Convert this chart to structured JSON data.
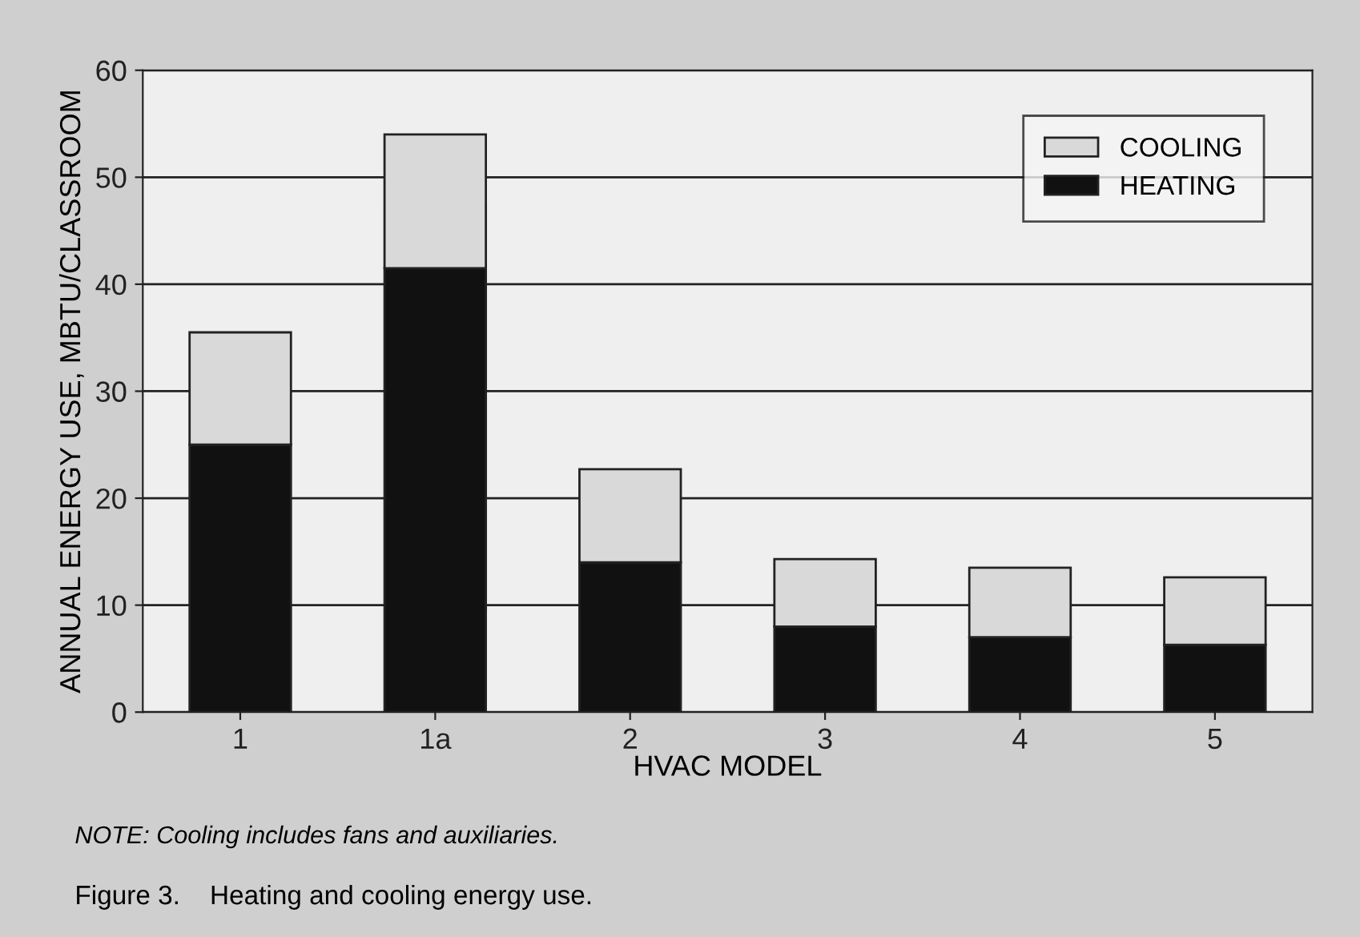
{
  "chart_data": {
    "type": "bar",
    "title": "Figure 3.    Heating and cooling energy use.",
    "xlabel": "HVAC MODEL",
    "ylabel": "ANNUAL ENERGY USE, MBTU/CLASSROOM",
    "categories": [
      "1",
      "1a",
      "2",
      "3",
      "4",
      "5"
    ],
    "series": [
      {
        "name": "HEATING",
        "color": "#111111",
        "values": [
          25,
          41.5,
          14,
          8,
          7,
          6.3
        ]
      },
      {
        "name": "COOLING",
        "color": "#d9d9d9",
        "values": [
          10.5,
          12.5,
          8.7,
          6.3,
          6.5,
          6.3
        ]
      }
    ],
    "stacked": true,
    "ylim": [
      0,
      60
    ],
    "yticks": [
      0,
      10,
      20,
      30,
      40,
      50,
      60
    ],
    "grid": "y",
    "legend": "top right",
    "annotations": [
      "NOTE: Cooling includes fans and auxiliaries."
    ]
  }
}
